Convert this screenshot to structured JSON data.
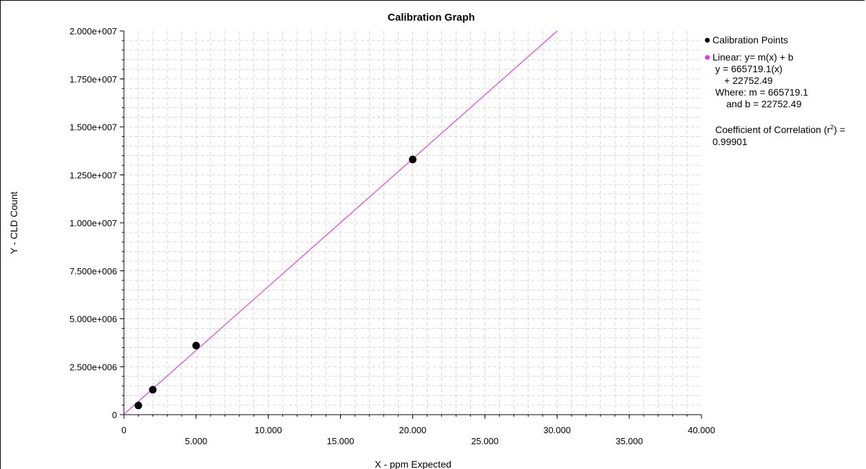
{
  "chart_data": {
    "type": "scatter",
    "title": "Calibration Graph",
    "xlabel": "X - ppm Expected",
    "ylabel": "Y - CLD Count",
    "xlim": [
      0,
      40
    ],
    "ylim": [
      0,
      20000000
    ],
    "x_ticks": [
      0,
      5,
      10,
      15,
      20,
      25,
      30,
      35,
      40
    ],
    "x_tick_labels": [
      "0",
      "5.000",
      "10.000",
      "15.000",
      "20.000",
      "25.000",
      "30.000",
      "35.000",
      "40.000"
    ],
    "y_ticks": [
      0,
      2500000,
      5000000,
      7500000,
      10000000,
      12500000,
      15000000,
      17500000,
      20000000
    ],
    "y_tick_labels": [
      "0",
      "2.500e+006",
      "5.000e+006",
      "7.500e+006",
      "1.000e+007",
      "1.250e+007",
      "1.500e+007",
      "1.750e+007",
      "2.000e+007"
    ],
    "grid": true,
    "legend_position": "right",
    "series": [
      {
        "name": "Calibration Points",
        "kind": "scatter",
        "color": "#000000",
        "x": [
          1,
          2,
          5,
          20
        ],
        "y": [
          480000,
          1300000,
          3600000,
          13300000
        ]
      },
      {
        "name": "Linear:  y= m(x) + b",
        "kind": "line",
        "color": "#e040e0",
        "slope": 665719.1,
        "intercept": 22752.49
      }
    ]
  },
  "legend": {
    "points_label": "Calibration Points",
    "linear_label": "Linear:  y= m(x) + b",
    "equation_line1": "y = 665719.1(x)",
    "equation_line2": "+ 22752.49",
    "where_line": "Where:  m = 665719.1",
    "and_line": "and    b = 22752.49",
    "coef_label": "Coefficient of Correlation (r",
    "coef_sup": "2",
    "coef_suffix": ") =",
    "coef_value": "0.99901"
  }
}
